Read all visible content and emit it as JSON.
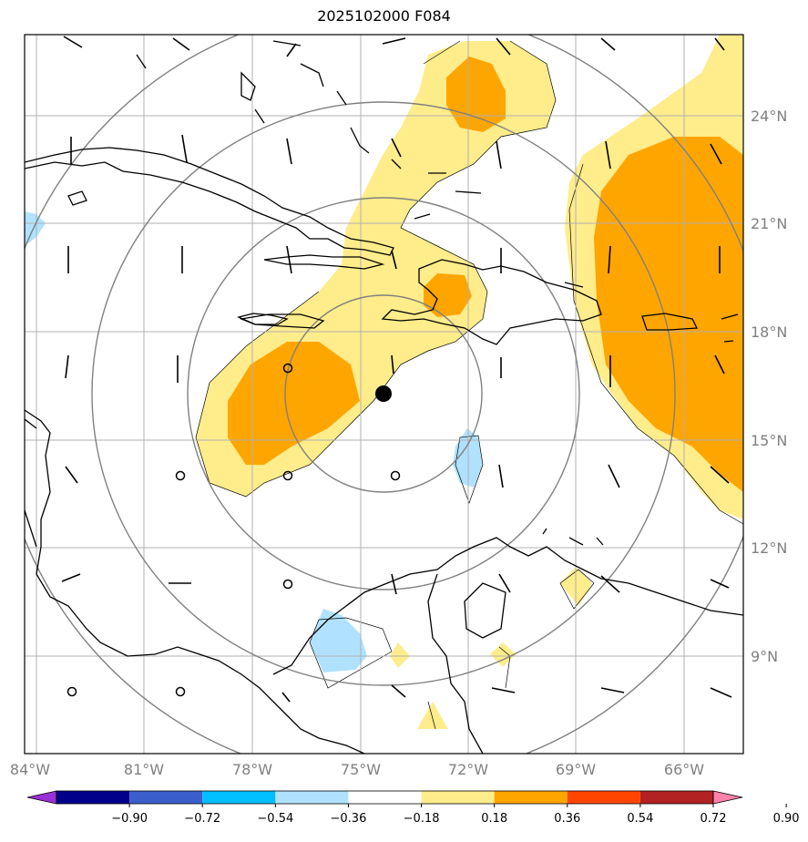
{
  "title": "2025102000 F084",
  "lat_labels": [
    "24°N",
    "21°N",
    "18°N",
    "15°N",
    "12°N",
    "9°N"
  ],
  "lon_labels": [
    "84°W",
    "81°W",
    "78°W",
    "75°W",
    "72°W",
    "69°W",
    "66°W"
  ],
  "colorbar": {
    "ticks": [
      "−0.90",
      "−0.72",
      "−0.54",
      "−0.36",
      "−0.18",
      "0.18",
      "0.36",
      "0.54",
      "0.72",
      "0.90"
    ],
    "colors": [
      "#9b30d9",
      "#00008b",
      "#3a5fcd",
      "#00bfff",
      "#b0e2ff",
      "#ffffff",
      "#ffec8b",
      "#ffa500",
      "#ff4500",
      "#b22222",
      "#ff82ab"
    ]
  },
  "colors": {
    "light_yellow": "#ffec8b",
    "orange": "#ffa500",
    "light_blue": "#b0e2ff",
    "grid": "#b0b0b0",
    "range_rings": "#808080"
  },
  "storm_center": {
    "lon": "74.3°W",
    "lat": "16.3°N"
  }
}
